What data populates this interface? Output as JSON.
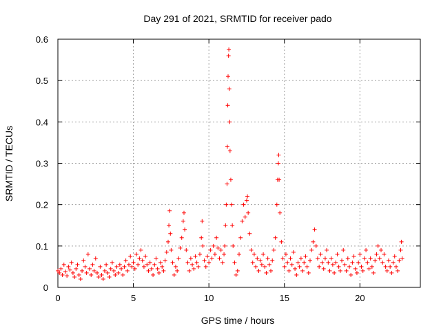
{
  "chart_data": {
    "type": "scatter",
    "title": "Day 291 of 2021, SRMTID for receiver pado",
    "xlabel": "GPS time / hours",
    "ylabel": "SRMTID / TECUs",
    "xlim": [
      0,
      24
    ],
    "ylim": [
      0,
      0.6
    ],
    "xticks": [
      0,
      5,
      10,
      15,
      20
    ],
    "xtick_labels": [
      "0",
      "5",
      "10",
      "15",
      "20"
    ],
    "yticks": [
      0,
      0.1,
      0.2,
      0.3,
      0.4,
      0.5,
      0.6
    ],
    "ytick_labels": [
      "0",
      "0.1",
      "0.2",
      "0.3",
      "0.4",
      "0.5",
      "0.6"
    ],
    "grid": true,
    "marker": "+",
    "color": "#ff0000",
    "series": [
      {
        "name": "SRMTID",
        "points": [
          [
            0.0,
            0.04
          ],
          [
            0.1,
            0.035
          ],
          [
            0.2,
            0.045
          ],
          [
            0.3,
            0.03
          ],
          [
            0.4,
            0.055
          ],
          [
            0.5,
            0.038
          ],
          [
            0.6,
            0.028
          ],
          [
            0.7,
            0.05
          ],
          [
            0.8,
            0.042
          ],
          [
            0.9,
            0.06
          ],
          [
            1.0,
            0.035
          ],
          [
            1.1,
            0.025
          ],
          [
            1.2,
            0.045
          ],
          [
            1.3,
            0.055
          ],
          [
            1.4,
            0.03
          ],
          [
            1.5,
            0.02
          ],
          [
            1.6,
            0.04
          ],
          [
            1.7,
            0.065
          ],
          [
            1.8,
            0.05
          ],
          [
            1.9,
            0.035
          ],
          [
            2.0,
            0.08
          ],
          [
            2.1,
            0.045
          ],
          [
            2.2,
            0.03
          ],
          [
            2.3,
            0.055
          ],
          [
            2.4,
            0.04
          ],
          [
            2.5,
            0.07
          ],
          [
            2.6,
            0.035
          ],
          [
            2.7,
            0.025
          ],
          [
            2.8,
            0.05
          ],
          [
            2.9,
            0.03
          ],
          [
            3.0,
            0.02
          ],
          [
            3.1,
            0.04
          ],
          [
            3.2,
            0.055
          ],
          [
            3.3,
            0.035
          ],
          [
            3.4,
            0.025
          ],
          [
            3.5,
            0.045
          ],
          [
            3.6,
            0.06
          ],
          [
            3.7,
            0.04
          ],
          [
            3.8,
            0.03
          ],
          [
            3.9,
            0.05
          ],
          [
            4.0,
            0.035
          ],
          [
            4.1,
            0.055
          ],
          [
            4.2,
            0.045
          ],
          [
            4.3,
            0.03
          ],
          [
            4.4,
            0.05
          ],
          [
            4.5,
            0.065
          ],
          [
            4.6,
            0.04
          ],
          [
            4.7,
            0.055
          ],
          [
            4.8,
            0.075
          ],
          [
            4.9,
            0.05
          ],
          [
            5.0,
            0.06
          ],
          [
            5.1,
            0.045
          ],
          [
            5.2,
            0.08
          ],
          [
            5.3,
            0.055
          ],
          [
            5.4,
            0.07
          ],
          [
            5.5,
            0.09
          ],
          [
            5.6,
            0.065
          ],
          [
            5.7,
            0.05
          ],
          [
            5.8,
            0.075
          ],
          [
            5.9,
            0.055
          ],
          [
            6.0,
            0.04
          ],
          [
            6.1,
            0.06
          ],
          [
            6.2,
            0.045
          ],
          [
            6.3,
            0.03
          ],
          [
            6.4,
            0.055
          ],
          [
            6.5,
            0.07
          ],
          [
            6.6,
            0.045
          ],
          [
            6.7,
            0.035
          ],
          [
            6.8,
            0.06
          ],
          [
            6.9,
            0.05
          ],
          [
            7.0,
            0.04
          ],
          [
            7.1,
            0.065
          ],
          [
            7.2,
            0.085
          ],
          [
            7.3,
            0.11
          ],
          [
            7.35,
            0.15
          ],
          [
            7.4,
            0.185
          ],
          [
            7.45,
            0.13
          ],
          [
            7.5,
            0.09
          ],
          [
            7.6,
            0.06
          ],
          [
            7.7,
            0.03
          ],
          [
            7.8,
            0.05
          ],
          [
            7.9,
            0.04
          ],
          [
            8.0,
            0.07
          ],
          [
            8.1,
            0.095
          ],
          [
            8.2,
            0.12
          ],
          [
            8.3,
            0.16
          ],
          [
            8.35,
            0.18
          ],
          [
            8.4,
            0.14
          ],
          [
            8.5,
            0.09
          ],
          [
            8.6,
            0.06
          ],
          [
            8.7,
            0.04
          ],
          [
            8.8,
            0.07
          ],
          [
            8.9,
            0.055
          ],
          [
            9.0,
            0.045
          ],
          [
            9.1,
            0.075
          ],
          [
            9.2,
            0.06
          ],
          [
            9.3,
            0.05
          ],
          [
            9.4,
            0.08
          ],
          [
            9.5,
            0.12
          ],
          [
            9.55,
            0.16
          ],
          [
            9.6,
            0.1
          ],
          [
            9.7,
            0.065
          ],
          [
            9.8,
            0.05
          ],
          [
            9.9,
            0.075
          ],
          [
            10.0,
            0.06
          ],
          [
            10.1,
            0.09
          ],
          [
            10.2,
            0.07
          ],
          [
            10.3,
            0.1
          ],
          [
            10.4,
            0.08
          ],
          [
            10.5,
            0.12
          ],
          [
            10.6,
            0.095
          ],
          [
            10.7,
            0.07
          ],
          [
            10.8,
            0.09
          ],
          [
            10.9,
            0.06
          ],
          [
            11.0,
            0.08
          ],
          [
            11.05,
            0.1
          ],
          [
            11.1,
            0.15
          ],
          [
            11.15,
            0.2
          ],
          [
            11.2,
            0.25
          ],
          [
            11.22,
            0.34
          ],
          [
            11.25,
            0.44
          ],
          [
            11.27,
            0.51
          ],
          [
            11.3,
            0.56
          ],
          [
            11.32,
            0.575
          ],
          [
            11.35,
            0.48
          ],
          [
            11.38,
            0.4
          ],
          [
            11.4,
            0.33
          ],
          [
            11.45,
            0.26
          ],
          [
            11.5,
            0.2
          ],
          [
            11.55,
            0.15
          ],
          [
            11.6,
            0.1
          ],
          [
            11.7,
            0.06
          ],
          [
            11.8,
            0.03
          ],
          [
            11.9,
            0.04
          ],
          [
            12.0,
            0.08
          ],
          [
            12.1,
            0.12
          ],
          [
            12.2,
            0.16
          ],
          [
            12.3,
            0.2
          ],
          [
            12.4,
            0.17
          ],
          [
            12.5,
            0.21
          ],
          [
            12.55,
            0.22
          ],
          [
            12.6,
            0.18
          ],
          [
            12.7,
            0.13
          ],
          [
            12.8,
            0.09
          ],
          [
            12.9,
            0.06
          ],
          [
            13.0,
            0.08
          ],
          [
            13.1,
            0.05
          ],
          [
            13.2,
            0.07
          ],
          [
            13.3,
            0.04
          ],
          [
            13.4,
            0.065
          ],
          [
            13.5,
            0.055
          ],
          [
            13.6,
            0.08
          ],
          [
            13.7,
            0.05
          ],
          [
            13.8,
            0.035
          ],
          [
            13.9,
            0.07
          ],
          [
            14.0,
            0.055
          ],
          [
            14.1,
            0.04
          ],
          [
            14.2,
            0.065
          ],
          [
            14.3,
            0.09
          ],
          [
            14.4,
            0.12
          ],
          [
            14.5,
            0.2
          ],
          [
            14.55,
            0.26
          ],
          [
            14.6,
            0.3
          ],
          [
            14.62,
            0.32
          ],
          [
            14.65,
            0.26
          ],
          [
            14.7,
            0.18
          ],
          [
            14.8,
            0.11
          ],
          [
            14.9,
            0.07
          ],
          [
            15.0,
            0.05
          ],
          [
            15.1,
            0.08
          ],
          [
            15.2,
            0.06
          ],
          [
            15.3,
            0.04
          ],
          [
            15.4,
            0.07
          ],
          [
            15.5,
            0.055
          ],
          [
            15.6,
            0.085
          ],
          [
            15.7,
            0.045
          ],
          [
            15.8,
            0.03
          ],
          [
            15.9,
            0.06
          ],
          [
            16.0,
            0.05
          ],
          [
            16.1,
            0.07
          ],
          [
            16.2,
            0.04
          ],
          [
            16.3,
            0.06
          ],
          [
            16.4,
            0.075
          ],
          [
            16.5,
            0.05
          ],
          [
            16.6,
            0.035
          ],
          [
            16.7,
            0.065
          ],
          [
            16.8,
            0.09
          ],
          [
            16.9,
            0.11
          ],
          [
            17.0,
            0.14
          ],
          [
            17.1,
            0.1
          ],
          [
            17.2,
            0.07
          ],
          [
            17.3,
            0.05
          ],
          [
            17.4,
            0.08
          ],
          [
            17.5,
            0.06
          ],
          [
            17.6,
            0.045
          ],
          [
            17.7,
            0.07
          ],
          [
            17.8,
            0.09
          ],
          [
            17.9,
            0.06
          ],
          [
            18.0,
            0.04
          ],
          [
            18.1,
            0.07
          ],
          [
            18.2,
            0.055
          ],
          [
            18.3,
            0.035
          ],
          [
            18.4,
            0.06
          ],
          [
            18.5,
            0.08
          ],
          [
            18.6,
            0.05
          ],
          [
            18.7,
            0.04
          ],
          [
            18.8,
            0.065
          ],
          [
            18.9,
            0.09
          ],
          [
            19.0,
            0.055
          ],
          [
            19.1,
            0.04
          ],
          [
            19.2,
            0.07
          ],
          [
            19.3,
            0.05
          ],
          [
            19.4,
            0.03
          ],
          [
            19.5,
            0.06
          ],
          [
            19.6,
            0.075
          ],
          [
            19.7,
            0.045
          ],
          [
            19.8,
            0.035
          ],
          [
            19.9,
            0.06
          ],
          [
            20.0,
            0.08
          ],
          [
            20.1,
            0.05
          ],
          [
            20.2,
            0.04
          ],
          [
            20.3,
            0.07
          ],
          [
            20.4,
            0.09
          ],
          [
            20.5,
            0.06
          ],
          [
            20.6,
            0.045
          ],
          [
            20.7,
            0.07
          ],
          [
            20.8,
            0.05
          ],
          [
            20.9,
            0.035
          ],
          [
            21.0,
            0.065
          ],
          [
            21.1,
            0.08
          ],
          [
            21.2,
            0.1
          ],
          [
            21.3,
            0.07
          ],
          [
            21.4,
            0.09
          ],
          [
            21.5,
            0.06
          ],
          [
            21.6,
            0.08
          ],
          [
            21.7,
            0.05
          ],
          [
            21.8,
            0.04
          ],
          [
            21.9,
            0.065
          ],
          [
            22.0,
            0.05
          ],
          [
            22.1,
            0.035
          ],
          [
            22.2,
            0.06
          ],
          [
            22.3,
            0.075
          ],
          [
            22.4,
            0.05
          ],
          [
            22.5,
            0.04
          ],
          [
            22.6,
            0.065
          ],
          [
            22.7,
            0.09
          ],
          [
            22.75,
            0.11
          ],
          [
            22.8,
            0.07
          ]
        ]
      }
    ]
  }
}
